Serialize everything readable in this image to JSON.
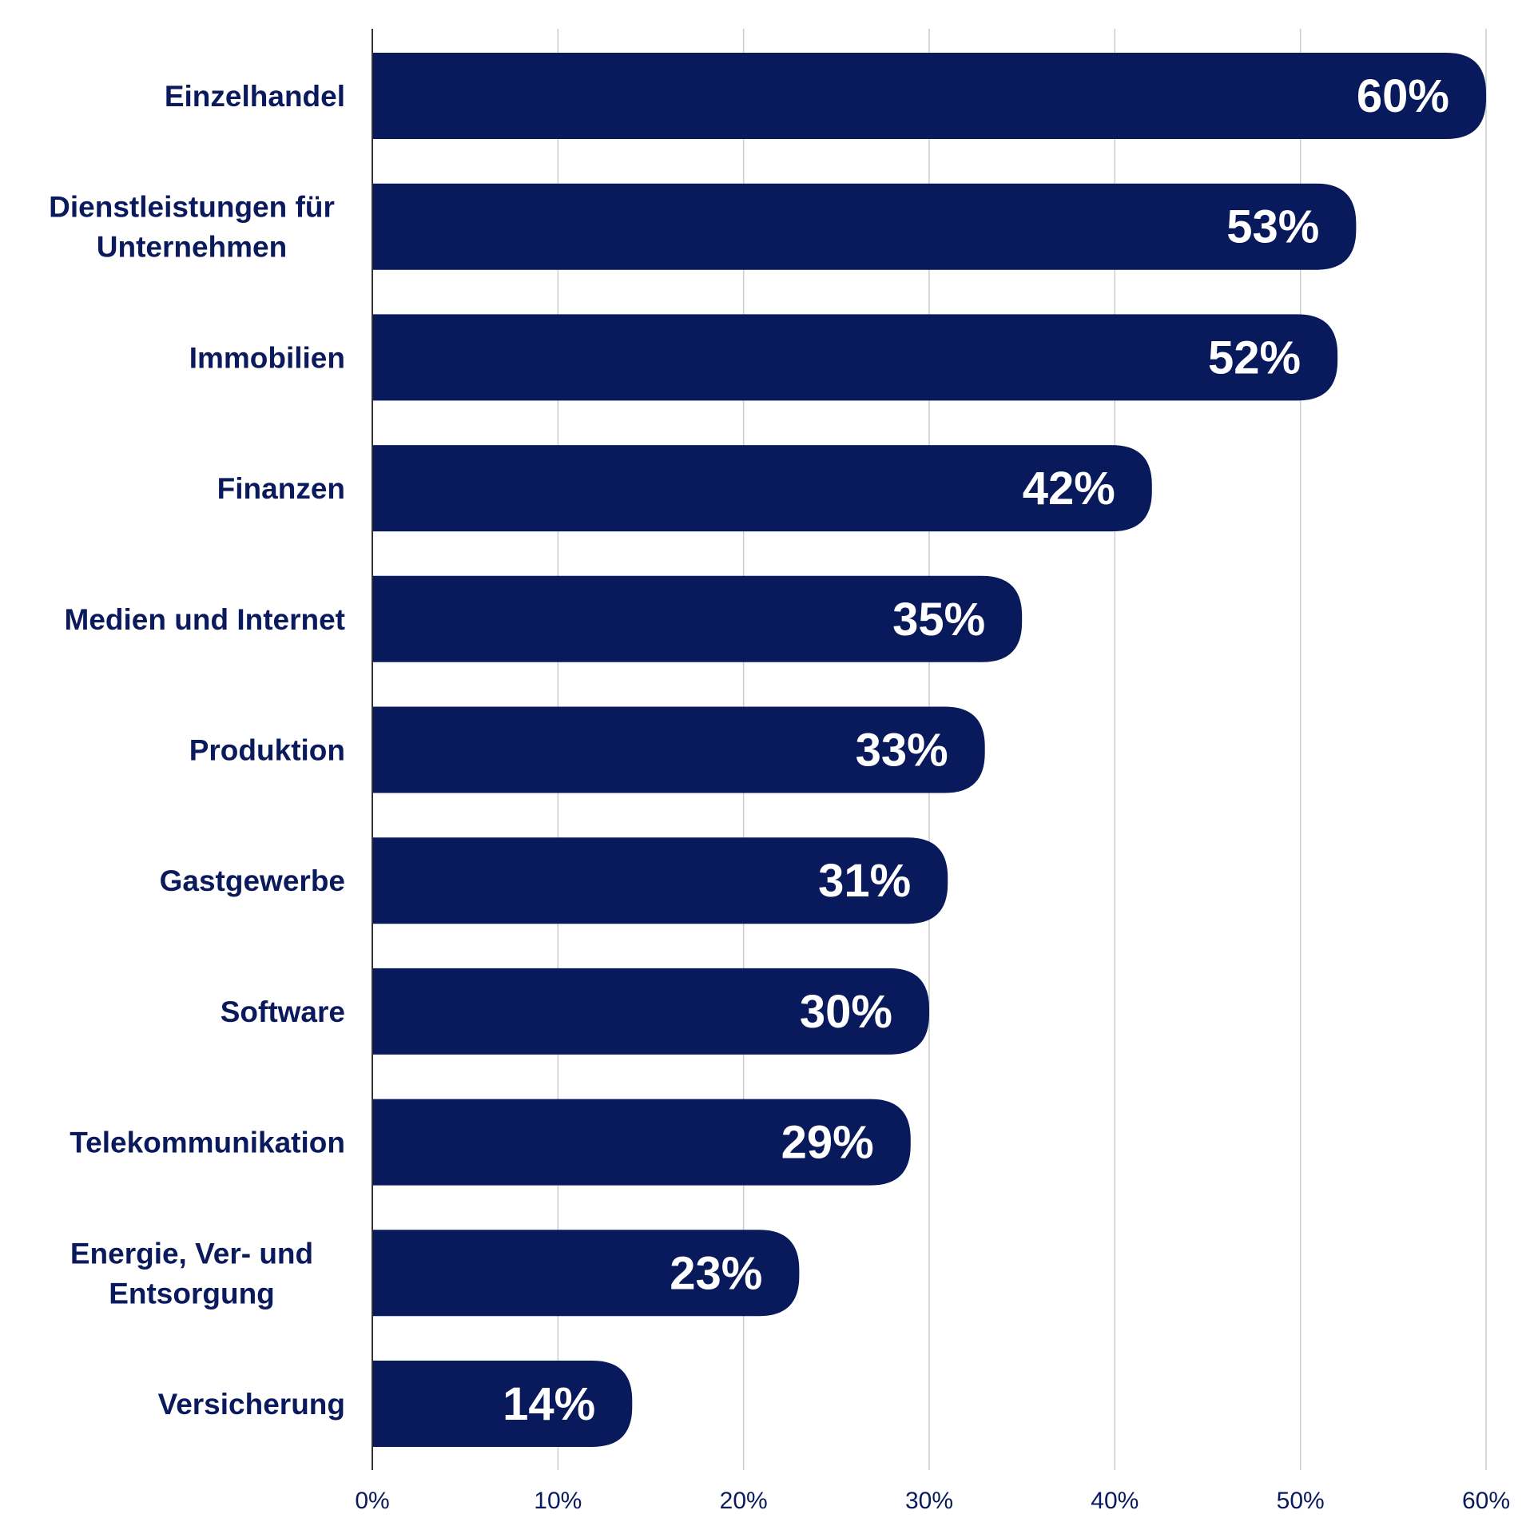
{
  "chart_data": {
    "type": "bar",
    "orientation": "horizontal",
    "title": "",
    "xlabel": "",
    "ylabel": "",
    "xlim": [
      0,
      60
    ],
    "grid": true,
    "categories": [
      [
        "Einzelhandel"
      ],
      [
        "Dienstleistungen für",
        "Unternehmen"
      ],
      [
        "Immobilien"
      ],
      [
        "Finanzen"
      ],
      [
        "Medien und Internet"
      ],
      [
        "Produktion"
      ],
      [
        "Gastgewerbe"
      ],
      [
        "Software"
      ],
      [
        "Telekommunikation"
      ],
      [
        "Energie, Ver- und",
        "Entsorgung"
      ],
      [
        "Versicherung"
      ]
    ],
    "values": [
      60,
      53,
      52,
      42,
      35,
      33,
      31,
      30,
      29,
      23,
      14
    ],
    "value_labels": [
      "60%",
      "53%",
      "52%",
      "42%",
      "35%",
      "33%",
      "31%",
      "30%",
      "29%",
      "23%",
      "14%"
    ],
    "x_ticks": [
      0,
      10,
      20,
      30,
      40,
      50,
      60
    ],
    "x_tick_labels": [
      "0%",
      "10%",
      "20%",
      "30%",
      "40%",
      "50%",
      "60%"
    ]
  },
  "colors": {
    "bar": "#08195c",
    "text": "#0a1a5c",
    "grid": "#cccccc",
    "axis": "#333333",
    "value_text": "#ffffff"
  }
}
